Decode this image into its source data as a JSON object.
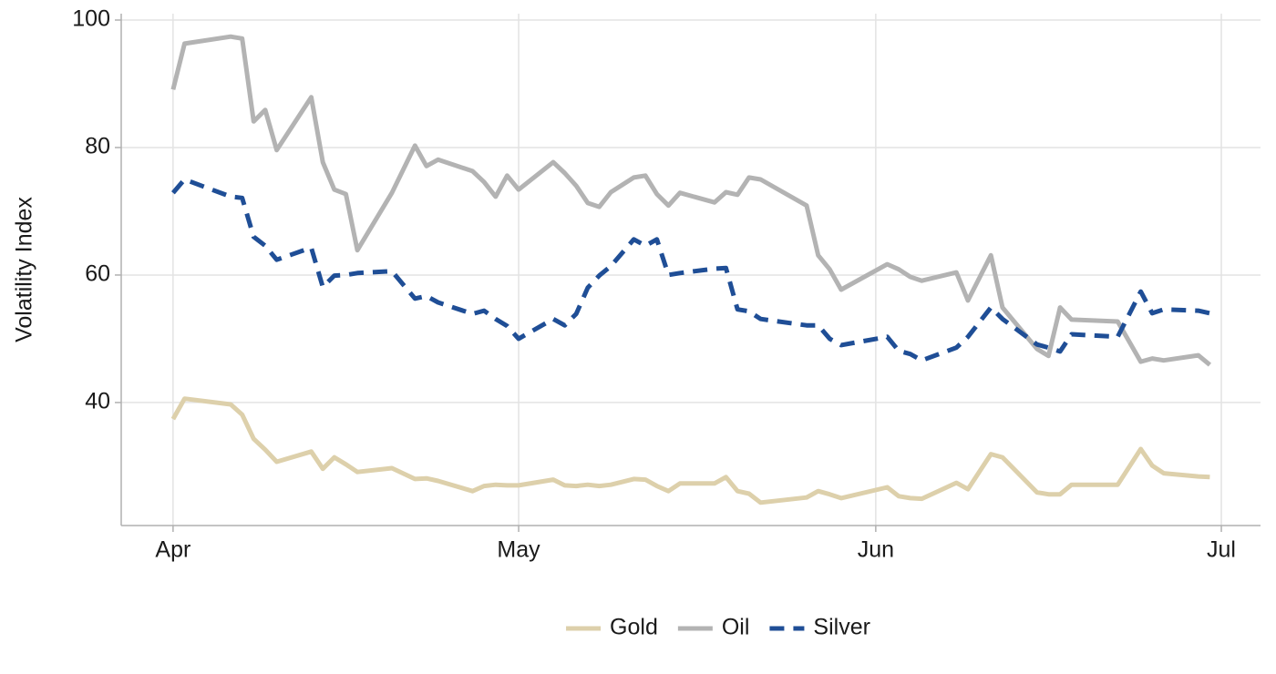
{
  "chart_data": {
    "type": "line",
    "y_label": "Volatility Index",
    "x": [
      0,
      1,
      5,
      6,
      7,
      8,
      9,
      12,
      13,
      14,
      15,
      16,
      19,
      21,
      22,
      23,
      26,
      27,
      28,
      29,
      30,
      33,
      34,
      35,
      36,
      37,
      38,
      40,
      41,
      42,
      43,
      44,
      47,
      48,
      49,
      50,
      51,
      55,
      56,
      57,
      58,
      62,
      63,
      64,
      65,
      68,
      69,
      71,
      72,
      75,
      76,
      77,
      78,
      82,
      84,
      85,
      86,
      89,
      90
    ],
    "xlim": [
      -4.5,
      94.4
    ],
    "xticks": [
      {
        "value": 0,
        "label": "Apr"
      },
      {
        "value": 30,
        "label": "May"
      },
      {
        "value": 61,
        "label": "Jun"
      },
      {
        "value": 91,
        "label": "Jul"
      }
    ],
    "ylim": [
      20.7,
      101
    ],
    "yticks": [
      40,
      60,
      80,
      100
    ],
    "grid": true,
    "legend": "bottom",
    "series": [
      {
        "name": "Gold",
        "color": "#ddd0ab",
        "dash": false,
        "values": [
          37.4,
          40.6,
          39.7,
          38.1,
          34.3,
          32.6,
          30.7,
          32.3,
          29.6,
          31.4,
          30.3,
          29.1,
          29.7,
          28.0,
          28.1,
          27.7,
          26.1,
          26.9,
          27.1,
          27.0,
          27.0,
          27.9,
          27.0,
          26.9,
          27.1,
          26.9,
          27.1,
          28.0,
          27.9,
          26.9,
          26.1,
          27.3,
          27.3,
          28.3,
          26.1,
          25.7,
          24.3,
          25.1,
          26.1,
          25.6,
          25.0,
          26.7,
          25.3,
          25.0,
          24.9,
          27.4,
          26.4,
          31.9,
          31.4,
          25.9,
          25.6,
          25.6,
          27.1,
          27.1,
          32.7,
          30.1,
          28.9,
          28.4,
          28.3
        ]
      },
      {
        "name": "Oil",
        "color": "#b3b3b3",
        "dash": false,
        "values": [
          89.1,
          96.3,
          97.4,
          97.1,
          84.1,
          85.9,
          79.6,
          87.9,
          77.7,
          73.4,
          72.7,
          63.9,
          72.9,
          80.3,
          77.1,
          78.1,
          76.3,
          74.6,
          72.3,
          75.6,
          73.4,
          77.7,
          76.0,
          74.0,
          71.3,
          70.7,
          73.0,
          75.3,
          75.6,
          72.7,
          70.9,
          72.9,
          71.4,
          73.0,
          72.6,
          75.3,
          75.0,
          70.9,
          63.1,
          60.9,
          57.7,
          61.7,
          60.9,
          59.7,
          59.1,
          60.4,
          56.0,
          63.1,
          54.9,
          48.4,
          47.3,
          54.9,
          53.0,
          52.7,
          46.4,
          46.9,
          46.6,
          47.4,
          45.9
        ]
      },
      {
        "name": "Silver",
        "color": "#1f4e96",
        "dash": true,
        "values": [
          72.9,
          75.0,
          72.3,
          72.1,
          66.0,
          64.6,
          62.4,
          64.3,
          58.1,
          59.9,
          60.0,
          60.3,
          60.6,
          56.3,
          56.7,
          55.7,
          53.9,
          54.4,
          53.1,
          52.0,
          50.0,
          53.1,
          52.1,
          53.9,
          58.0,
          59.9,
          61.4,
          65.6,
          64.6,
          65.6,
          60.0,
          60.3,
          61.0,
          61.1,
          54.6,
          54.3,
          53.1,
          52.1,
          52.1,
          50.0,
          49.0,
          50.3,
          48.1,
          47.6,
          46.6,
          48.6,
          50.3,
          54.9,
          53.1,
          49.1,
          48.6,
          48.0,
          50.7,
          50.3,
          57.4,
          54.0,
          54.6,
          54.4,
          54.0
        ]
      }
    ]
  }
}
